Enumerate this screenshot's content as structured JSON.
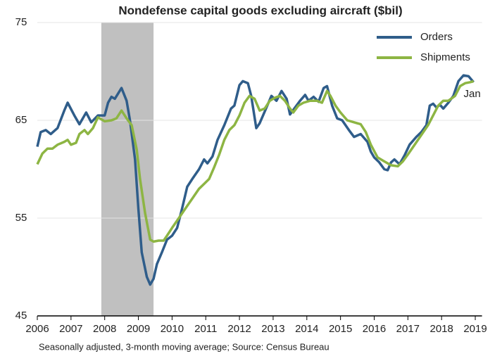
{
  "chart_data": {
    "type": "line",
    "title": "Nondefense capital goods excluding aircraft ($bil)",
    "footnote": "Seasonally adjusted, 3-month moving average; Source: Census Bureau",
    "annotation": "Jan",
    "xlim": [
      2006,
      2019.2
    ],
    "xticks": [
      2006,
      2007,
      2008,
      2009,
      2010,
      2011,
      2012,
      2013,
      2014,
      2015,
      2016,
      2017,
      2018,
      2019
    ],
    "ylim": [
      45,
      75
    ],
    "yticks": [
      45,
      55,
      65,
      75
    ],
    "grid": true,
    "legend": "top-right",
    "shaded_ranges": [
      [
        2007.9,
        2009.45
      ]
    ],
    "shade_color": "#c0c0c0",
    "series": [
      {
        "name": "Orders",
        "color": "#2f5d8a",
        "x": [
          2006.0,
          2006.1,
          2006.25,
          2006.4,
          2006.6,
          2006.8,
          2006.9,
          2007.1,
          2007.25,
          2007.45,
          2007.6,
          2007.8,
          2008.0,
          2008.1,
          2008.2,
          2008.3,
          2008.5,
          2008.65,
          2008.75,
          2008.9,
          2009.0,
          2009.1,
          2009.25,
          2009.35,
          2009.45,
          2009.55,
          2009.7,
          2009.85,
          2010.0,
          2010.15,
          2010.3,
          2010.45,
          2010.6,
          2010.8,
          2010.95,
          2011.05,
          2011.2,
          2011.35,
          2011.55,
          2011.75,
          2011.85,
          2012.0,
          2012.1,
          2012.25,
          2012.35,
          2012.5,
          2012.6,
          2012.8,
          2012.95,
          2013.1,
          2013.25,
          2013.4,
          2013.5,
          2013.65,
          2013.8,
          2013.95,
          2014.05,
          2014.2,
          2014.35,
          2014.5,
          2014.6,
          2014.75,
          2014.9,
          2015.05,
          2015.25,
          2015.4,
          2015.6,
          2015.8,
          2015.9,
          2016.0,
          2016.15,
          2016.3,
          2016.4,
          2016.5,
          2016.6,
          2016.75,
          2016.9,
          2017.05,
          2017.25,
          2017.4,
          2017.55,
          2017.65,
          2017.75,
          2017.85,
          2017.95,
          2018.05,
          2018.2,
          2018.35,
          2018.5,
          2018.65,
          2018.8,
          2018.95
        ],
        "values": [
          62.3,
          63.8,
          64.0,
          63.6,
          64.2,
          66.0,
          66.8,
          65.5,
          64.6,
          65.8,
          64.8,
          65.5,
          65.5,
          66.8,
          67.4,
          67.2,
          68.3,
          67.0,
          65.0,
          61.0,
          56.0,
          51.5,
          49.0,
          48.2,
          48.8,
          50.3,
          51.5,
          52.8,
          53.2,
          54.0,
          56.0,
          58.2,
          59.0,
          60.0,
          61.0,
          60.6,
          61.3,
          63.0,
          64.5,
          66.2,
          66.5,
          68.6,
          69.0,
          68.8,
          67.5,
          64.2,
          64.7,
          66.3,
          67.5,
          67.0,
          68.0,
          67.2,
          65.6,
          66.3,
          67.0,
          67.6,
          67.0,
          67.4,
          66.9,
          68.3,
          68.5,
          66.5,
          65.2,
          65.0,
          64.0,
          63.3,
          63.6,
          62.8,
          61.8,
          61.2,
          60.7,
          60.0,
          59.9,
          60.7,
          61.0,
          60.5,
          61.4,
          62.5,
          63.3,
          63.8,
          64.5,
          66.5,
          66.7,
          66.3,
          66.6,
          66.2,
          66.8,
          67.5,
          69.0,
          69.6,
          69.5,
          68.9
        ]
      },
      {
        "name": "Shipments",
        "color": "#8db543",
        "x": [
          2006.0,
          2006.15,
          2006.3,
          2006.45,
          2006.6,
          2006.8,
          2006.9,
          2007.0,
          2007.15,
          2007.25,
          2007.4,
          2007.5,
          2007.65,
          2007.8,
          2008.0,
          2008.2,
          2008.35,
          2008.5,
          2008.65,
          2008.8,
          2008.95,
          2009.05,
          2009.2,
          2009.35,
          2009.45,
          2009.6,
          2009.75,
          2009.85,
          2010.0,
          2010.2,
          2010.4,
          2010.6,
          2010.8,
          2010.95,
          2011.1,
          2011.25,
          2011.4,
          2011.55,
          2011.7,
          2011.85,
          2012.0,
          2012.15,
          2012.3,
          2012.45,
          2012.6,
          2012.75,
          2012.9,
          2013.05,
          2013.2,
          2013.35,
          2013.5,
          2013.6,
          2013.75,
          2013.9,
          2014.1,
          2014.3,
          2014.45,
          2014.6,
          2014.7,
          2014.85,
          2015.0,
          2015.2,
          2015.4,
          2015.6,
          2015.75,
          2015.9,
          2016.1,
          2016.3,
          2016.5,
          2016.7,
          2016.85,
          2017.0,
          2017.2,
          2017.4,
          2017.6,
          2017.75,
          2017.9,
          2018.05,
          2018.2,
          2018.4,
          2018.55,
          2018.7,
          2018.85,
          2018.95
        ],
        "values": [
          60.5,
          61.6,
          62.1,
          62.1,
          62.5,
          62.8,
          63.0,
          62.5,
          62.7,
          63.6,
          64.0,
          63.6,
          64.2,
          65.3,
          64.9,
          65.0,
          65.2,
          66.0,
          65.2,
          64.5,
          62.0,
          59.0,
          55.5,
          52.8,
          52.6,
          52.7,
          52.7,
          53.2,
          54.0,
          55.0,
          56.0,
          57.0,
          58.0,
          58.5,
          59.0,
          60.2,
          61.5,
          63.0,
          64.0,
          64.5,
          65.5,
          66.8,
          67.5,
          67.2,
          66.0,
          66.2,
          67.0,
          67.3,
          67.5,
          67.0,
          66.2,
          65.8,
          66.5,
          66.8,
          67.0,
          67.0,
          66.8,
          68.0,
          67.5,
          66.5,
          65.8,
          65.0,
          64.8,
          64.6,
          63.8,
          62.5,
          61.2,
          60.8,
          60.4,
          60.3,
          60.8,
          61.5,
          62.5,
          63.5,
          64.5,
          65.5,
          66.5,
          67.0,
          67.0,
          67.5,
          68.5,
          68.8,
          68.9,
          69.0
        ]
      }
    ]
  }
}
